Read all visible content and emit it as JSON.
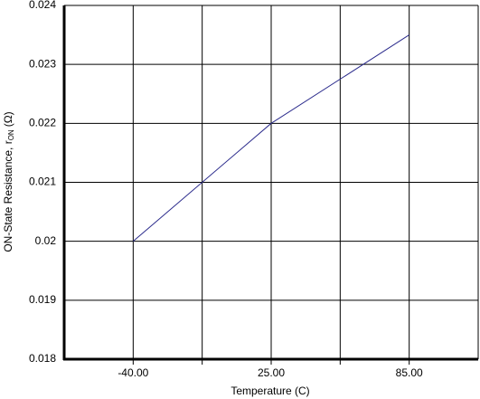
{
  "chart_data": {
    "type": "line",
    "x_label": "Temperature (C)",
    "y_label": {
      "main": "ON-State Resistance, r",
      "sub": "ON",
      "unit": "(Ω)"
    },
    "categories": [
      "-40.00",
      "25.00",
      "85.00"
    ],
    "values": [
      0.02,
      0.022,
      0.0235
    ],
    "color": "#2b2b8c",
    "ylim": [
      0.018,
      0.024
    ],
    "yticks": [
      0.018,
      0.019,
      0.02,
      0.021,
      0.022,
      0.023,
      0.024
    ],
    "grid": true
  }
}
